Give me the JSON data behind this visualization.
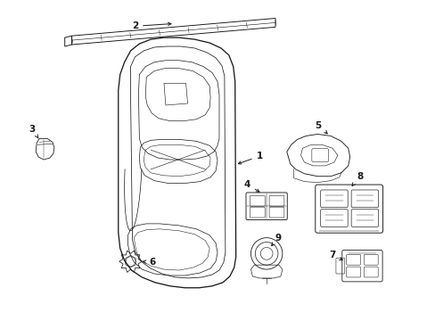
{
  "bg_color": "#ffffff",
  "line_color": "#1a1a1a",
  "figsize": [
    4.89,
    3.6
  ],
  "dpi": 100,
  "lw": 0.85,
  "font_size": 7.5
}
